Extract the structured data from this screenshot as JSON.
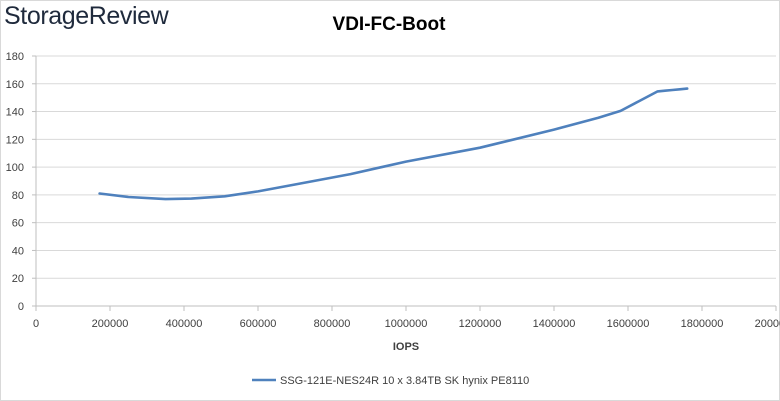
{
  "brand": {
    "logo_text": "StorageReview"
  },
  "chart_data": {
    "type": "line",
    "title": "VDI-FC-Boot",
    "xlabel": "IOPS",
    "ylabel": "",
    "xlim": [
      0,
      2000000
    ],
    "ylim": [
      0,
      180
    ],
    "x_ticks": [
      0,
      200000,
      400000,
      600000,
      800000,
      1000000,
      1200000,
      1400000,
      1600000,
      1800000,
      2000000
    ],
    "y_ticks": [
      0,
      20,
      40,
      60,
      80,
      100,
      120,
      140,
      160,
      180
    ],
    "grid": {
      "horizontal": true,
      "vertical": false
    },
    "legend_position": "bottom",
    "series": [
      {
        "name": "SSG-121E-NES24R 10 x 3.84TB SK hynix PE8110",
        "color": "#4f81bd",
        "x": [
          172000,
          250000,
          350000,
          420000,
          510000,
          600000,
          700000,
          850000,
          1000000,
          1200000,
          1400000,
          1520000,
          1580000,
          1630000,
          1680000,
          1700000,
          1720000,
          1740000,
          1760000
        ],
        "y": [
          81,
          78.5,
          77,
          77.3,
          79,
          82.5,
          87.5,
          95,
          104,
          114,
          127,
          135.5,
          140.5,
          147.5,
          154.5,
          155,
          155.5,
          156,
          156.5
        ]
      }
    ]
  }
}
